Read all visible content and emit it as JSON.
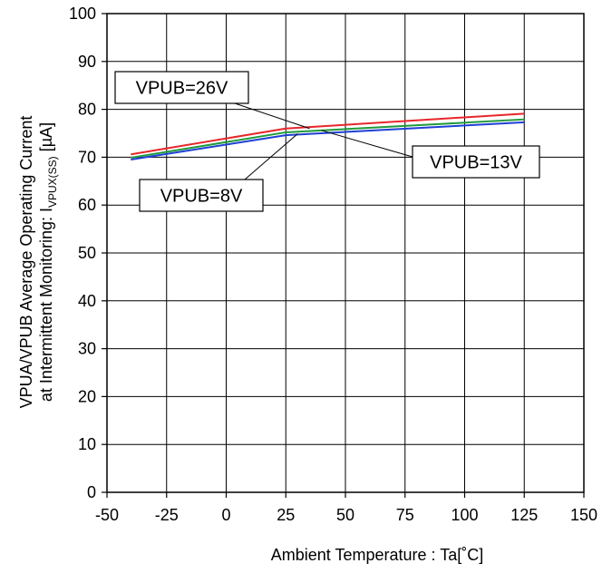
{
  "chart_data": {
    "type": "line",
    "xlabel": "Ambient Temperature : Ta[˚C]",
    "ylabel_line1": "VPUA/VPUB Average Operating Current",
    "ylabel_line2_prefix": "at Intermittent Monitoring: I",
    "ylabel_line2_subscript": "VPUX(SS)",
    "ylabel_line2_suffix": "  [µA]",
    "xlim": [
      -50,
      150
    ],
    "ylim": [
      0,
      100
    ],
    "xticks": [
      -50,
      -25,
      0,
      25,
      50,
      75,
      100,
      125,
      150
    ],
    "yticks": [
      0,
      10,
      20,
      30,
      40,
      50,
      60,
      70,
      80,
      90,
      100
    ],
    "grid": true,
    "series": [
      {
        "name": "VPUB=26V",
        "color": "#e8262a",
        "x": [
          -40,
          25,
          125
        ],
        "y": [
          70.6,
          76.0,
          79.1
        ]
      },
      {
        "name": "VPUB=13V",
        "color": "#1f9a3a",
        "x": [
          -40,
          25,
          125
        ],
        "y": [
          69.9,
          75.2,
          77.9
        ]
      },
      {
        "name": "VPUB=8V",
        "color": "#1f3fd6",
        "x": [
          -40,
          25,
          125
        ],
        "y": [
          69.5,
          74.6,
          77.3
        ]
      }
    ],
    "annotations": [
      {
        "text": "VPUB=26V",
        "series": 0
      },
      {
        "text": "VPUB=13V",
        "series": 1
      },
      {
        "text": "VPUB=8V",
        "series": 2
      }
    ]
  }
}
